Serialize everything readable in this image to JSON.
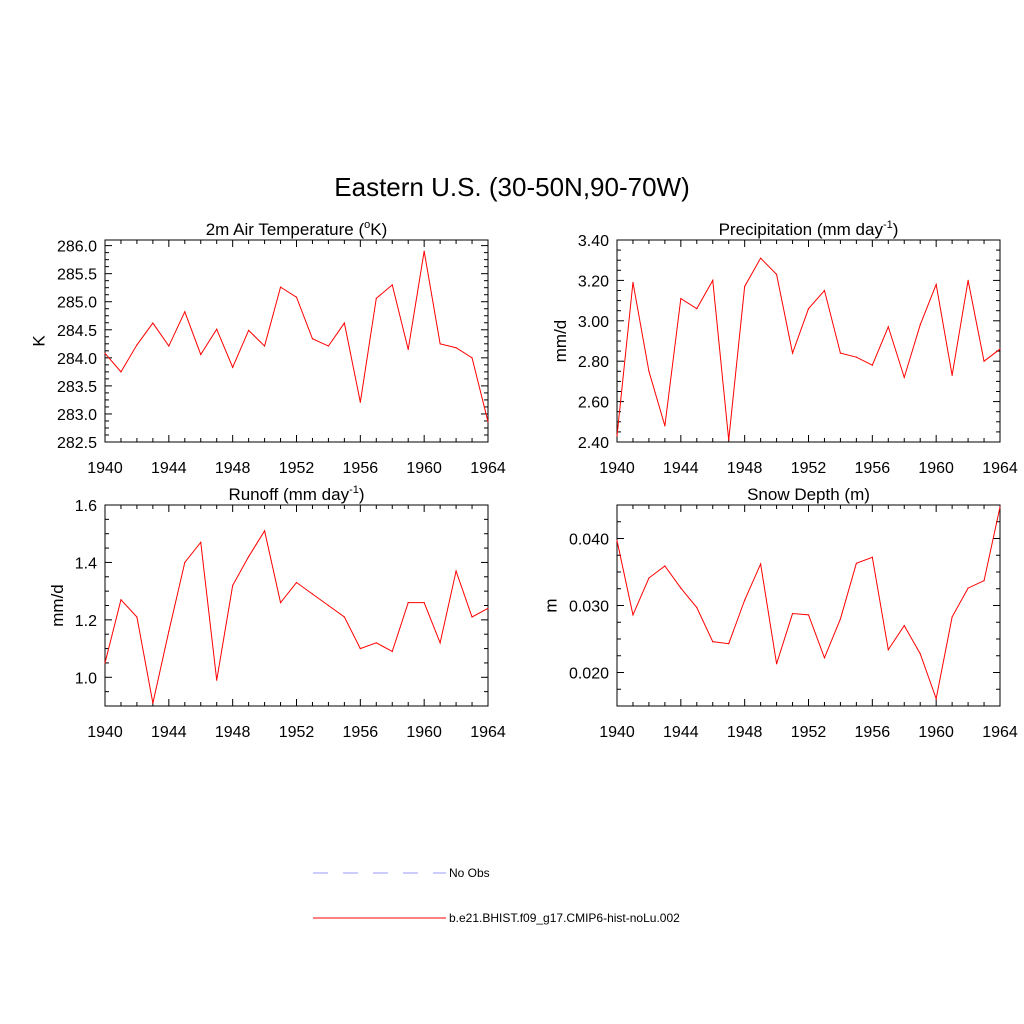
{
  "figure": {
    "title": "Eastern U.S. (30-50N,90-70W)"
  },
  "legend": {
    "items": [
      {
        "label": "No Obs",
        "color": "#9999ff",
        "style": "dashed"
      },
      {
        "label": "b.e21.BHIST.f09_g17.CMIP6-hist-noLu.002",
        "color": "#ff0000",
        "style": "solid"
      }
    ]
  },
  "chart_data": [
    {
      "type": "line",
      "title": "2m Air Temperature (",
      "title_sup": "o",
      "title_tail": "K)",
      "xlabel": "",
      "ylabel": "K",
      "xlim": [
        1940,
        1964
      ],
      "ylim": [
        282.5,
        286.1
      ],
      "xticks": [
        "1940",
        "1944",
        "1948",
        "1952",
        "1956",
        "1960",
        "1964"
      ],
      "yticks": [
        "282.5",
        "283.0",
        "283.5",
        "284.0",
        "284.5",
        "285.0",
        "285.5",
        "286.0"
      ],
      "series": [
        {
          "color": "#ff0000",
          "x": [
            1940,
            1941,
            1942,
            1943,
            1944,
            1945,
            1946,
            1947,
            1948,
            1949,
            1950,
            1951,
            1952,
            1953,
            1954,
            1955,
            1956,
            1957,
            1958,
            1959,
            1960,
            1961,
            1962,
            1963,
            1964
          ],
          "values": [
            284.08,
            283.75,
            284.23,
            284.62,
            284.21,
            284.82,
            284.06,
            284.51,
            283.83,
            284.49,
            284.21,
            285.26,
            285.08,
            284.34,
            284.21,
            284.62,
            283.21,
            285.06,
            285.3,
            284.15,
            285.9,
            284.25,
            284.18,
            284.0,
            282.86
          ]
        }
      ]
    },
    {
      "type": "line",
      "title": "Precipitation (mm day",
      "title_sup": "-1",
      "title_tail": ")",
      "xlabel": "",
      "ylabel": "mm/d",
      "xlim": [
        1940,
        1964
      ],
      "ylim": [
        2.4,
        3.4
      ],
      "xticks": [
        "1940",
        "1944",
        "1948",
        "1952",
        "1956",
        "1960",
        "1964"
      ],
      "yticks": [
        "2.40",
        "2.60",
        "2.80",
        "3.00",
        "3.20",
        "3.40"
      ],
      "series": [
        {
          "color": "#ff0000",
          "x": [
            1940,
            1941,
            1942,
            1943,
            1944,
            1945,
            1946,
            1947,
            1948,
            1949,
            1950,
            1951,
            1952,
            1953,
            1954,
            1955,
            1956,
            1957,
            1958,
            1959,
            1960,
            1961,
            1962,
            1963,
            1964
          ],
          "values": [
            2.43,
            3.19,
            2.75,
            2.48,
            3.11,
            3.06,
            3.2,
            2.41,
            3.17,
            3.31,
            3.23,
            2.84,
            3.06,
            3.15,
            2.84,
            2.82,
            2.78,
            2.97,
            2.72,
            2.98,
            3.18,
            2.73,
            3.2,
            2.8,
            2.86
          ]
        }
      ]
    },
    {
      "type": "line",
      "title": "Runoff (mm day",
      "title_sup": "-1",
      "title_tail": ")",
      "xlabel": "",
      "ylabel": "mm/d",
      "xlim": [
        1940,
        1964
      ],
      "ylim": [
        0.9,
        1.6
      ],
      "xticks": [
        "1940",
        "1944",
        "1948",
        "1952",
        "1956",
        "1960",
        "1964"
      ],
      "yticks": [
        "1.0",
        "1.2",
        "1.4",
        "1.6"
      ],
      "series": [
        {
          "color": "#ff0000",
          "x": [
            1940,
            1941,
            1942,
            1943,
            1944,
            1945,
            1946,
            1947,
            1948,
            1949,
            1950,
            1951,
            1952,
            1953,
            1954,
            1955,
            1956,
            1957,
            1958,
            1959,
            1960,
            1961,
            1962,
            1963,
            1964
          ],
          "values": [
            1.05,
            1.27,
            1.21,
            0.91,
            1.16,
            1.4,
            1.47,
            0.99,
            1.32,
            1.42,
            1.51,
            1.26,
            1.33,
            1.29,
            1.25,
            1.21,
            1.1,
            1.12,
            1.09,
            1.26,
            1.26,
            1.12,
            1.37,
            1.21,
            1.24
          ]
        }
      ]
    },
    {
      "type": "line",
      "title": "Snow Depth (m)",
      "title_sup": "",
      "title_tail": "",
      "xlabel": "",
      "ylabel": "m",
      "xlim": [
        1940,
        1964
      ],
      "ylim": [
        0.015,
        0.045
      ],
      "xticks": [
        "1940",
        "1944",
        "1948",
        "1952",
        "1956",
        "1960",
        "1964"
      ],
      "yticks": [
        "0.020",
        "0.030",
        "0.040"
      ],
      "series": [
        {
          "color": "#ff0000",
          "x": [
            1940,
            1941,
            1942,
            1943,
            1944,
            1945,
            1946,
            1947,
            1948,
            1949,
            1950,
            1951,
            1952,
            1953,
            1954,
            1955,
            1956,
            1957,
            1958,
            1959,
            1960,
            1961,
            1962,
            1963,
            1964
          ],
          "values": [
            0.0397,
            0.0286,
            0.0341,
            0.0359,
            0.0326,
            0.0297,
            0.0246,
            0.0243,
            0.0308,
            0.0362,
            0.0213,
            0.0288,
            0.0286,
            0.0222,
            0.028,
            0.0363,
            0.0372,
            0.0234,
            0.027,
            0.0228,
            0.0161,
            0.0283,
            0.0326,
            0.0337,
            0.0447
          ]
        }
      ]
    }
  ]
}
